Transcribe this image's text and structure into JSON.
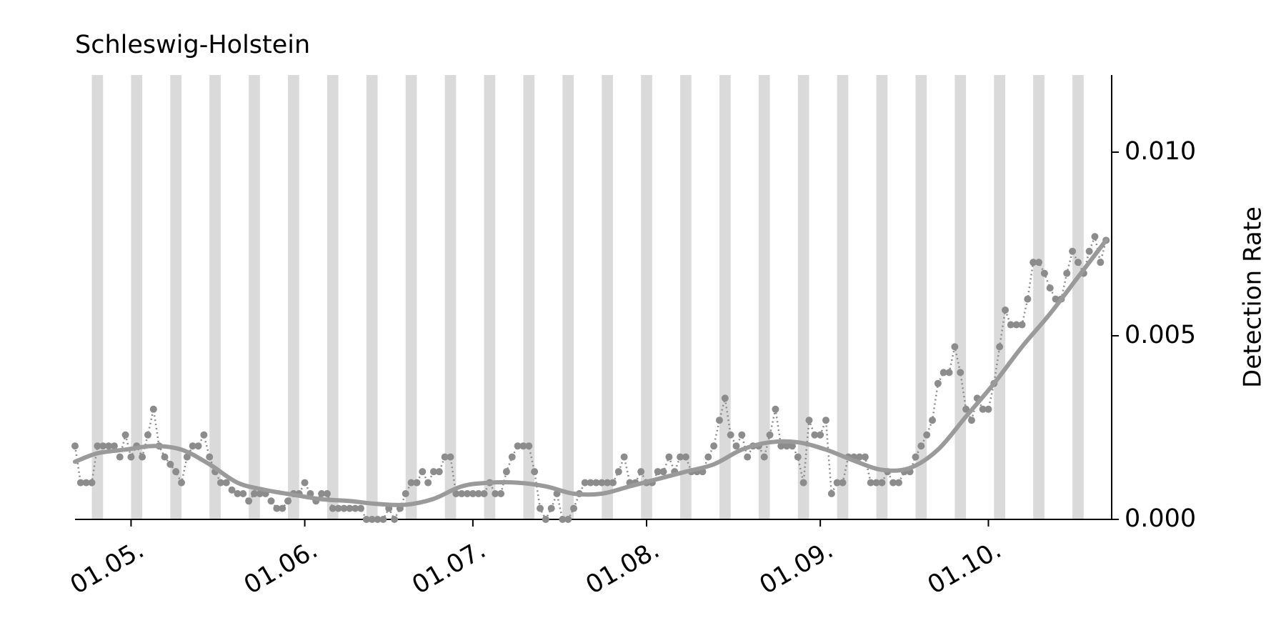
{
  "chart_data": {
    "type": "line",
    "title": "Schleswig-Holstein",
    "y_label": "Detection Rate",
    "xlim": [
      111,
      296
    ],
    "xticks": [
      {
        "value": 121,
        "label": "01.05."
      },
      {
        "value": 152,
        "label": "01.06."
      },
      {
        "value": 182,
        "label": "01.07."
      },
      {
        "value": 213,
        "label": "01.08."
      },
      {
        "value": 244,
        "label": "01.09."
      },
      {
        "value": 274,
        "label": "01.10."
      }
    ],
    "ylim": [
      0,
      0.0121
    ],
    "yticks": [
      {
        "value": 0,
        "label": "0.000"
      },
      {
        "value": 0.005,
        "label": "0.005"
      },
      {
        "value": 0.01,
        "label": "0.010"
      }
    ],
    "y_axis_side": "right",
    "weekend_bands": [
      [
        114,
        116
      ],
      [
        121,
        123
      ],
      [
        128,
        130
      ],
      [
        135,
        137
      ],
      [
        142,
        144
      ],
      [
        149,
        151
      ],
      [
        156,
        158
      ],
      [
        163,
        165
      ],
      [
        170,
        172
      ],
      [
        177,
        179
      ],
      [
        184,
        186
      ],
      [
        191,
        193
      ],
      [
        198,
        200
      ],
      [
        205,
        207
      ],
      [
        212,
        214
      ],
      [
        219,
        221
      ],
      [
        226,
        228
      ],
      [
        233,
        235
      ],
      [
        240,
        242
      ],
      [
        247,
        249
      ],
      [
        254,
        256
      ],
      [
        261,
        263
      ],
      [
        268,
        270
      ],
      [
        275,
        277
      ],
      [
        282,
        284
      ],
      [
        289,
        291
      ]
    ],
    "band_color": "#d4d4d4",
    "series": [
      {
        "style": "dots",
        "color": "#8c8c8c",
        "x": [
          111,
          112,
          113,
          114,
          115,
          116,
          117,
          118,
          119,
          120,
          121,
          122,
          123,
          124,
          125,
          126,
          127,
          128,
          129,
          130,
          131,
          132,
          133,
          134,
          135,
          136,
          137,
          138,
          139,
          140,
          141,
          142,
          143,
          144,
          145,
          146,
          147,
          148,
          149,
          150,
          151,
          152,
          153,
          154,
          155,
          156,
          157,
          158,
          159,
          160,
          161,
          162,
          163,
          164,
          165,
          166,
          167,
          168,
          169,
          170,
          171,
          172,
          173,
          174,
          175,
          176,
          177,
          178,
          179,
          180,
          181,
          182,
          183,
          184,
          185,
          186,
          187,
          188,
          189,
          190,
          191,
          192,
          193,
          194,
          195,
          196,
          197,
          198,
          199,
          200,
          201,
          202,
          203,
          204,
          205,
          206,
          207,
          208,
          209,
          210,
          211,
          212,
          213,
          214,
          215,
          216,
          217,
          218,
          219,
          220,
          221,
          222,
          223,
          224,
          225,
          226,
          227,
          228,
          229,
          230,
          231,
          232,
          233,
          234,
          235,
          236,
          237,
          238,
          239,
          240,
          241,
          242,
          243,
          244,
          245,
          246,
          247,
          248,
          249,
          250,
          251,
          252,
          253,
          254,
          255,
          256,
          257,
          258,
          259,
          260,
          261,
          262,
          263,
          264,
          265,
          266,
          267,
          268,
          269,
          270,
          271,
          272,
          273,
          274,
          275,
          276,
          277,
          278,
          279,
          280,
          281,
          282,
          283,
          284,
          285,
          286,
          287,
          288,
          289,
          290,
          291,
          292,
          293,
          294,
          295
        ],
        "values": [
          0.002,
          0.001,
          0.001,
          0.001,
          0.002,
          0.002,
          0.002,
          0.002,
          0.0017,
          0.0023,
          0.0017,
          0.002,
          0.0017,
          0.0023,
          0.003,
          0.002,
          0.0017,
          0.0015,
          0.0013,
          0.001,
          0.0017,
          0.002,
          0.002,
          0.0023,
          0.0017,
          0.0013,
          0.001,
          0.001,
          0.0008,
          0.0007,
          0.0007,
          0.0005,
          0.0007,
          0.0007,
          0.0007,
          0.0005,
          0.0003,
          0.0003,
          0.0005,
          0.0007,
          0.0007,
          0.001,
          0.0007,
          0.0005,
          0.0007,
          0.0007,
          0.0003,
          0.0003,
          0.0003,
          0.0003,
          0.0003,
          0.0003,
          0,
          0,
          0,
          0,
          0.0003,
          0,
          0.0003,
          0.0007,
          0.001,
          0.001,
          0.0013,
          0.001,
          0.0013,
          0.0013,
          0.0017,
          0.0017,
          0.0007,
          0.0007,
          0.0007,
          0.0007,
          0.0007,
          0.0007,
          0.001,
          0.0007,
          0.0007,
          0.0013,
          0.0017,
          0.002,
          0.002,
          0.002,
          0.0013,
          0.0003,
          0,
          0.0003,
          0.0007,
          0,
          0,
          0.0003,
          0.0007,
          0.001,
          0.001,
          0.001,
          0.001,
          0.001,
          0.001,
          0.0013,
          0.0017,
          0.001,
          0.001,
          0.0013,
          0.001,
          0.001,
          0.0013,
          0.0013,
          0.0017,
          0.0013,
          0.0017,
          0.0017,
          0.0013,
          0.0013,
          0.0013,
          0.0017,
          0.002,
          0.0027,
          0.0033,
          0.0023,
          0.002,
          0.0023,
          0.0017,
          0.002,
          0.002,
          0.0017,
          0.0023,
          0.003,
          0.002,
          0.002,
          0.002,
          0.0017,
          0.001,
          0.0027,
          0.0023,
          0.0023,
          0.0027,
          0.0007,
          0.001,
          0.001,
          0.0017,
          0.0017,
          0.0017,
          0.0017,
          0.001,
          0.001,
          0.001,
          0.0013,
          0.001,
          0.001,
          0.0013,
          0.0013,
          0.0017,
          0.002,
          0.0023,
          0.0027,
          0.0037,
          0.004,
          0.004,
          0.0047,
          0.004,
          0.003,
          0.0027,
          0.0033,
          0.003,
          0.003,
          0.0037,
          0.0047,
          0.0057,
          0.0053,
          0.0053,
          0.0053,
          0.006,
          0.007,
          0.007,
          0.0067,
          0.0063,
          0.006,
          0.006,
          0.0067,
          0.0073,
          0.007,
          0.0067,
          0.0073,
          0.0077,
          0.007,
          0.0076
        ]
      },
      {
        "style": "smooth",
        "color": "#9a9a9a",
        "x": [
          111,
          115,
          120,
          125,
          130,
          135,
          140,
          145,
          150,
          155,
          160,
          165,
          170,
          175,
          180,
          185,
          190,
          195,
          200,
          205,
          210,
          215,
          220,
          225,
          230,
          235,
          240,
          245,
          250,
          255,
          260,
          265,
          270,
          275,
          280,
          285,
          290,
          295
        ],
        "values": [
          0.00157,
          0.0018,
          0.0019,
          0.002,
          0.0019,
          0.0015,
          0.001,
          0.0008,
          0.00067,
          0.00055,
          0.0005,
          0.00042,
          0.0004,
          0.00056,
          0.0009,
          0.001,
          0.001,
          0.0009,
          0.0007,
          0.0007,
          0.0009,
          0.0011,
          0.0013,
          0.0015,
          0.0019,
          0.0021,
          0.0021,
          0.0019,
          0.0016,
          0.00135,
          0.0014,
          0.0019,
          0.0028,
          0.0037,
          0.0047,
          0.0056,
          0.0066,
          0.0076
        ]
      }
    ]
  }
}
